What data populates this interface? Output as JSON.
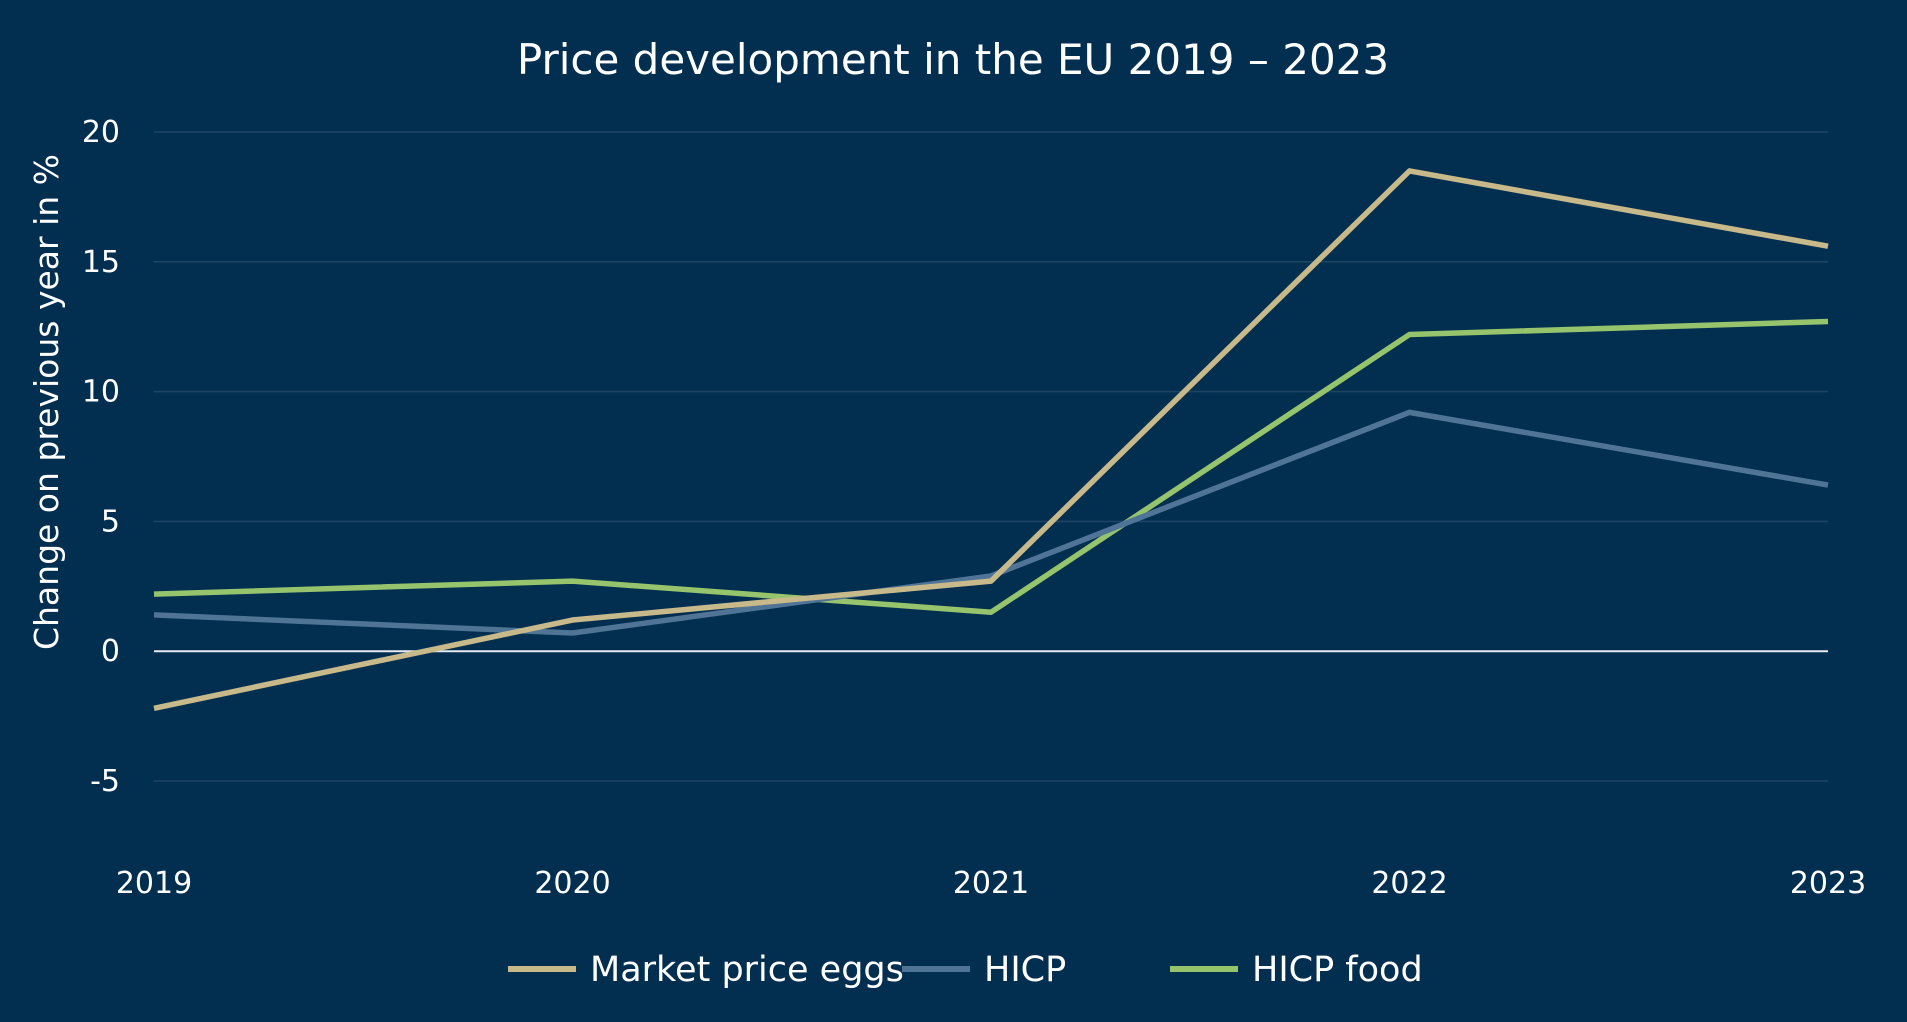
{
  "chart_data": {
    "type": "line",
    "title": "Price development in the EU 2019 – 2023",
    "xlabel": "",
    "ylabel": "Change on previous year in %",
    "x": [
      "2019",
      "2020",
      "2021",
      "2022",
      "2023"
    ],
    "ylim": [
      -5,
      20
    ],
    "yticks": [
      "20",
      "15",
      "10",
      "5",
      "0",
      "-5"
    ],
    "grid": true,
    "legend_position": "bottom-center",
    "series": [
      {
        "name": "Market price eggs",
        "color": "#c8b98a",
        "values": [
          -2.2,
          1.2,
          2.7,
          18.5,
          15.6
        ]
      },
      {
        "name": "HICP",
        "color": "#4f7496",
        "values": [
          1.4,
          0.7,
          2.9,
          9.2,
          6.4
        ]
      },
      {
        "name": "HICP food",
        "color": "#96c46c",
        "values": [
          2.2,
          2.7,
          1.5,
          12.2,
          12.7
        ]
      }
    ]
  },
  "colors": {
    "background": "#022e50",
    "gridline": "#1e4464",
    "zero_line": "#e6ebf0",
    "text": "#ffffff"
  }
}
